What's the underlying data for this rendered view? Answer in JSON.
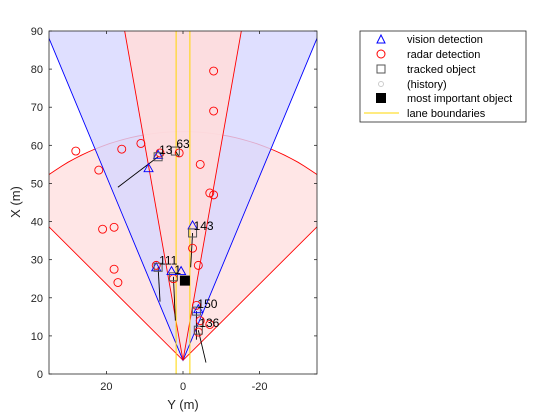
{
  "chart_data": {
    "type": "scatter",
    "xlabel": "Y (m)",
    "ylabel": "X (m)",
    "xlim": [
      35,
      -35
    ],
    "ylim": [
      0,
      90
    ],
    "xticks": [
      20,
      0,
      -20
    ],
    "yticks": [
      0,
      10,
      20,
      30,
      40,
      50,
      60,
      70,
      80,
      90
    ],
    "x_axis_reversed": true,
    "grid": false,
    "legend_position": "top-right outside",
    "colors": {
      "vision": "#0000ff",
      "radar": "#ff0000",
      "track": "#555555",
      "lane": "#ffd700",
      "important": "#000000",
      "coverage_radar_fill": "#ffdddd",
      "coverage_vision_fill": "#d7d7ff"
    },
    "legend": [
      {
        "label": "vision detection",
        "marker": "triangle"
      },
      {
        "label": "radar detection",
        "marker": "circle"
      },
      {
        "label": "tracked object",
        "marker": "square"
      },
      {
        "label": "(history)",
        "marker": "small-circle"
      },
      {
        "label": "most important object",
        "marker": "filled-square"
      },
      {
        "label": "lane boundaries",
        "marker": "line"
      }
    ],
    "sensor_origin": {
      "y": 0,
      "x": 3.6
    },
    "coverage": [
      {
        "name": "radar long range",
        "half_angle_deg": 10,
        "range": 174
      },
      {
        "name": "vision",
        "half_angle_deg": 22.5,
        "range": 150
      },
      {
        "name": "radar mid range",
        "half_angle_deg": 45,
        "range": 60
      }
    ],
    "lane_boundaries": [
      1.8,
      -1.8
    ],
    "vision_detections": [
      {
        "y": 9,
        "x": 54
      },
      {
        "y": 6.5,
        "x": 57.5
      },
      {
        "y": -2.5,
        "x": 39
      },
      {
        "y": 7,
        "x": 28
      },
      {
        "y": 3,
        "x": 27
      },
      {
        "y": 0.5,
        "x": 27
      },
      {
        "y": -4,
        "x": 17
      }
    ],
    "radar_detections": [
      {
        "y": 28,
        "x": 58.5
      },
      {
        "y": 22,
        "x": 53.5
      },
      {
        "y": 16,
        "x": 59
      },
      {
        "y": 11,
        "x": 60.5
      },
      {
        "y": 6,
        "x": 58
      },
      {
        "y": 1,
        "x": 58
      },
      {
        "y": -8,
        "x": 79.5
      },
      {
        "y": -8,
        "x": 69
      },
      {
        "y": -4.5,
        "x": 55
      },
      {
        "y": -7,
        "x": 47.5
      },
      {
        "y": -8,
        "x": 47
      },
      {
        "y": 21,
        "x": 38
      },
      {
        "y": 18,
        "x": 38.5
      },
      {
        "y": 18,
        "x": 27.5
      },
      {
        "y": 17,
        "x": 24
      },
      {
        "y": -2.5,
        "x": 33
      },
      {
        "y": -4,
        "x": 28.5
      },
      {
        "y": 7,
        "x": 28.5
      },
      {
        "y": 2.5,
        "x": 25
      },
      {
        "y": -3.5,
        "x": 18
      },
      {
        "y": -4.5,
        "x": 14
      },
      {
        "y": -7,
        "x": 13
      },
      {
        "y": -4,
        "x": 11
      }
    ],
    "tracks": [
      {
        "id": "13",
        "y": 6.5,
        "x": 57,
        "hist_y": 17,
        "hist_x": 49
      },
      {
        "id": "63",
        "y": 2,
        "x": 58.5,
        "hist_y": 1,
        "hist_x": 57
      },
      {
        "id": "143",
        "y": -2.5,
        "x": 37,
        "hist_y": -2,
        "hist_x": 28
      },
      {
        "id": "111",
        "y": 6.5,
        "x": 28,
        "hist_y": 6,
        "hist_x": 19
      },
      {
        "id": "1",
        "y": 2.5,
        "x": 25.5,
        "hist_y": 2,
        "hist_x": 14
      },
      {
        "id": "150",
        "y": -3.5,
        "x": 16.5,
        "hist_y": -3.5,
        "hist_x": 9
      },
      {
        "id": "136",
        "y": -4,
        "x": 11.5,
        "hist_y": -6,
        "hist_x": 3
      }
    ],
    "most_important": {
      "y": -0.5,
      "x": 24.5
    }
  }
}
